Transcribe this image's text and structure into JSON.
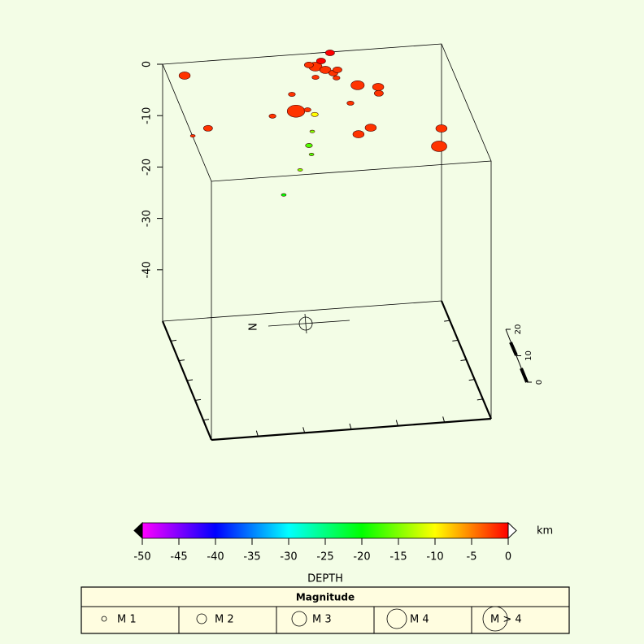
{
  "chart_data": {
    "type": "scatter3d",
    "xlim": [
      0,
      100
    ],
    "ylim": [
      0,
      45
    ],
    "zlim": [
      -50,
      0
    ],
    "zticks": [
      0,
      -10,
      -20,
      -30,
      -40
    ],
    "events": {
      "x": [
        7.5,
        8.0,
        1.6,
        41.1,
        54.3,
        57.3,
        59.6,
        52.3,
        59.9,
        55.6,
        61.5,
        52.8,
        60.0,
        66.3,
        73.2,
        72.5,
        61.2,
        64.7,
        59.5,
        89.2,
        85.8,
        42.1,
        32.2,
        45.3,
        53.1,
        53.5,
        51.8,
        51.4,
        43.7,
        38.1
      ],
      "y": [
        1.0,
        21.3,
        23.7,
        17.3,
        1.2,
        2.7,
        4.1,
        0.4,
        0.3,
        3.1,
        3.0,
        5.2,
        6.0,
        9.3,
        10.5,
        12.9,
        15.8,
        25.5,
        27.6,
        27.7,
        34.3,
        10.9,
        18.5,
        17.1,
        3.7,
        0.4,
        1.7,
        5.1,
        14.4,
        13.7
      ],
      "depth": [
        -2,
        -2,
        -2,
        -2,
        -2,
        -2,
        -2,
        -2,
        0,
        0,
        -2,
        -2,
        -2,
        -2,
        -2,
        -2,
        -2,
        -2,
        -2,
        -2,
        -2,
        -2,
        -2,
        -2,
        -10,
        -15,
        -17,
        -17,
        -15,
        -20
      ],
      "magnitude": [
        2.5,
        2,
        1,
        4,
        3,
        2.5,
        2,
        2,
        2,
        2,
        2,
        1.5,
        1.5,
        3,
        2.5,
        2,
        1.5,
        2.5,
        2.5,
        2.5,
        3.5,
        1.5,
        1.5,
        1.5,
        1.5,
        1,
        1.5,
        1,
        1,
        1
      ]
    },
    "colorbar": {
      "ticks": [
        -50,
        -45,
        -40,
        -35,
        -30,
        -25,
        -20,
        -15,
        -10,
        -5,
        0
      ],
      "unit": "km",
      "label": "DEPTH",
      "colors": [
        "#ff00ff",
        "#0000ff",
        "#00ffff",
        "#00ff00",
        "#ffff00",
        "#ff0000"
      ]
    },
    "legend": {
      "title": "Magnitude",
      "labels": [
        "M 1",
        "M 2",
        "M 3",
        "M 4",
        "M > 4"
      ]
    },
    "scale_bar": {
      "ticks": [
        0,
        10,
        20
      ]
    },
    "compass": "N"
  }
}
